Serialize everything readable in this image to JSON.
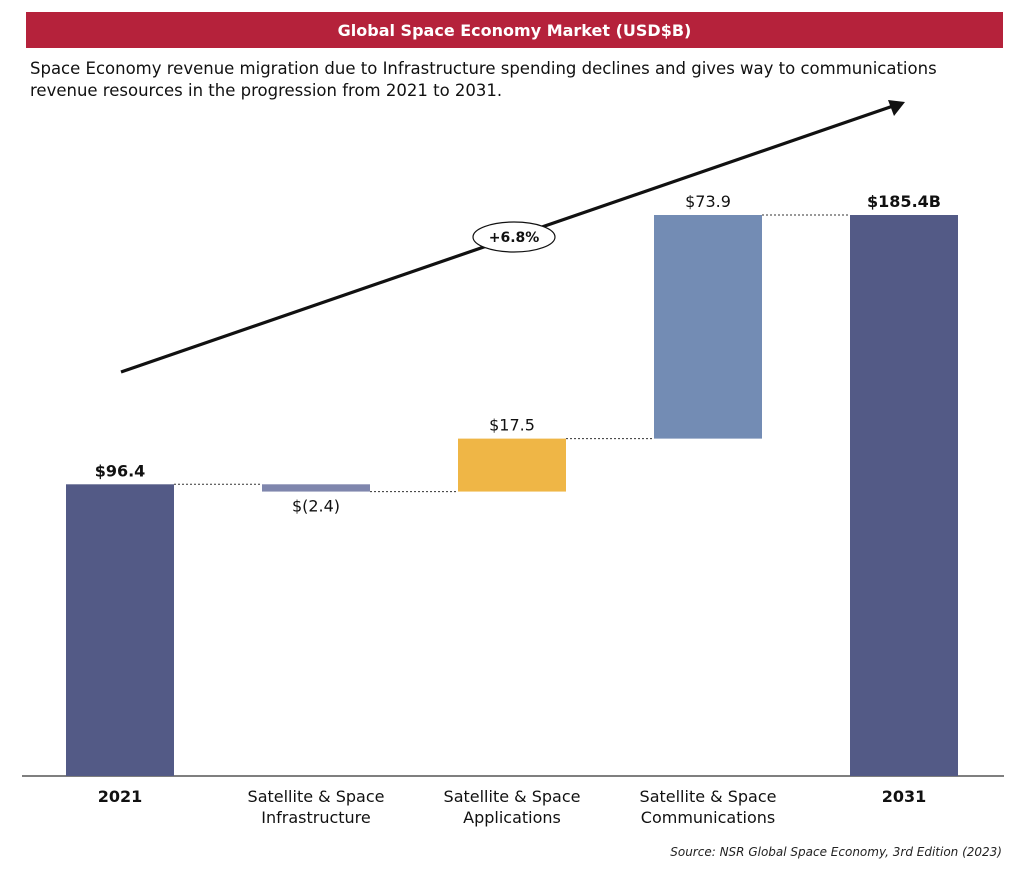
{
  "header": {
    "title": "Global Space Economy Market (USD$B)",
    "subtitle": "Space Economy revenue migration due to Infrastructure spending declines and gives way to communications revenue resources in the progression from 2021 to 2031."
  },
  "chart_data": {
    "type": "waterfall",
    "categories": [
      "2021",
      "Satellite & Space\nInfrastructure",
      "Satellite & Space\nApplications",
      "Satellite & Space\nCommunications",
      "2031"
    ],
    "values": [
      96.4,
      -2.4,
      17.5,
      73.9,
      185.4
    ],
    "kinds": [
      "total",
      "delta",
      "delta",
      "delta",
      "total"
    ],
    "data_labels": [
      "$96.4",
      "$(2.4)",
      "$17.5",
      "$73.9",
      "$185.4B"
    ],
    "colors": [
      "#535a86",
      "#7f86ad",
      "#efb646",
      "#738cb4",
      "#535a86"
    ],
    "ylim": [
      0,
      185.4
    ],
    "growth_annotation": "+6.8%",
    "grid": false,
    "legend": "none"
  },
  "footer": {
    "source": "Source: NSR Global Space Economy, 3rd Edition (2023)"
  }
}
